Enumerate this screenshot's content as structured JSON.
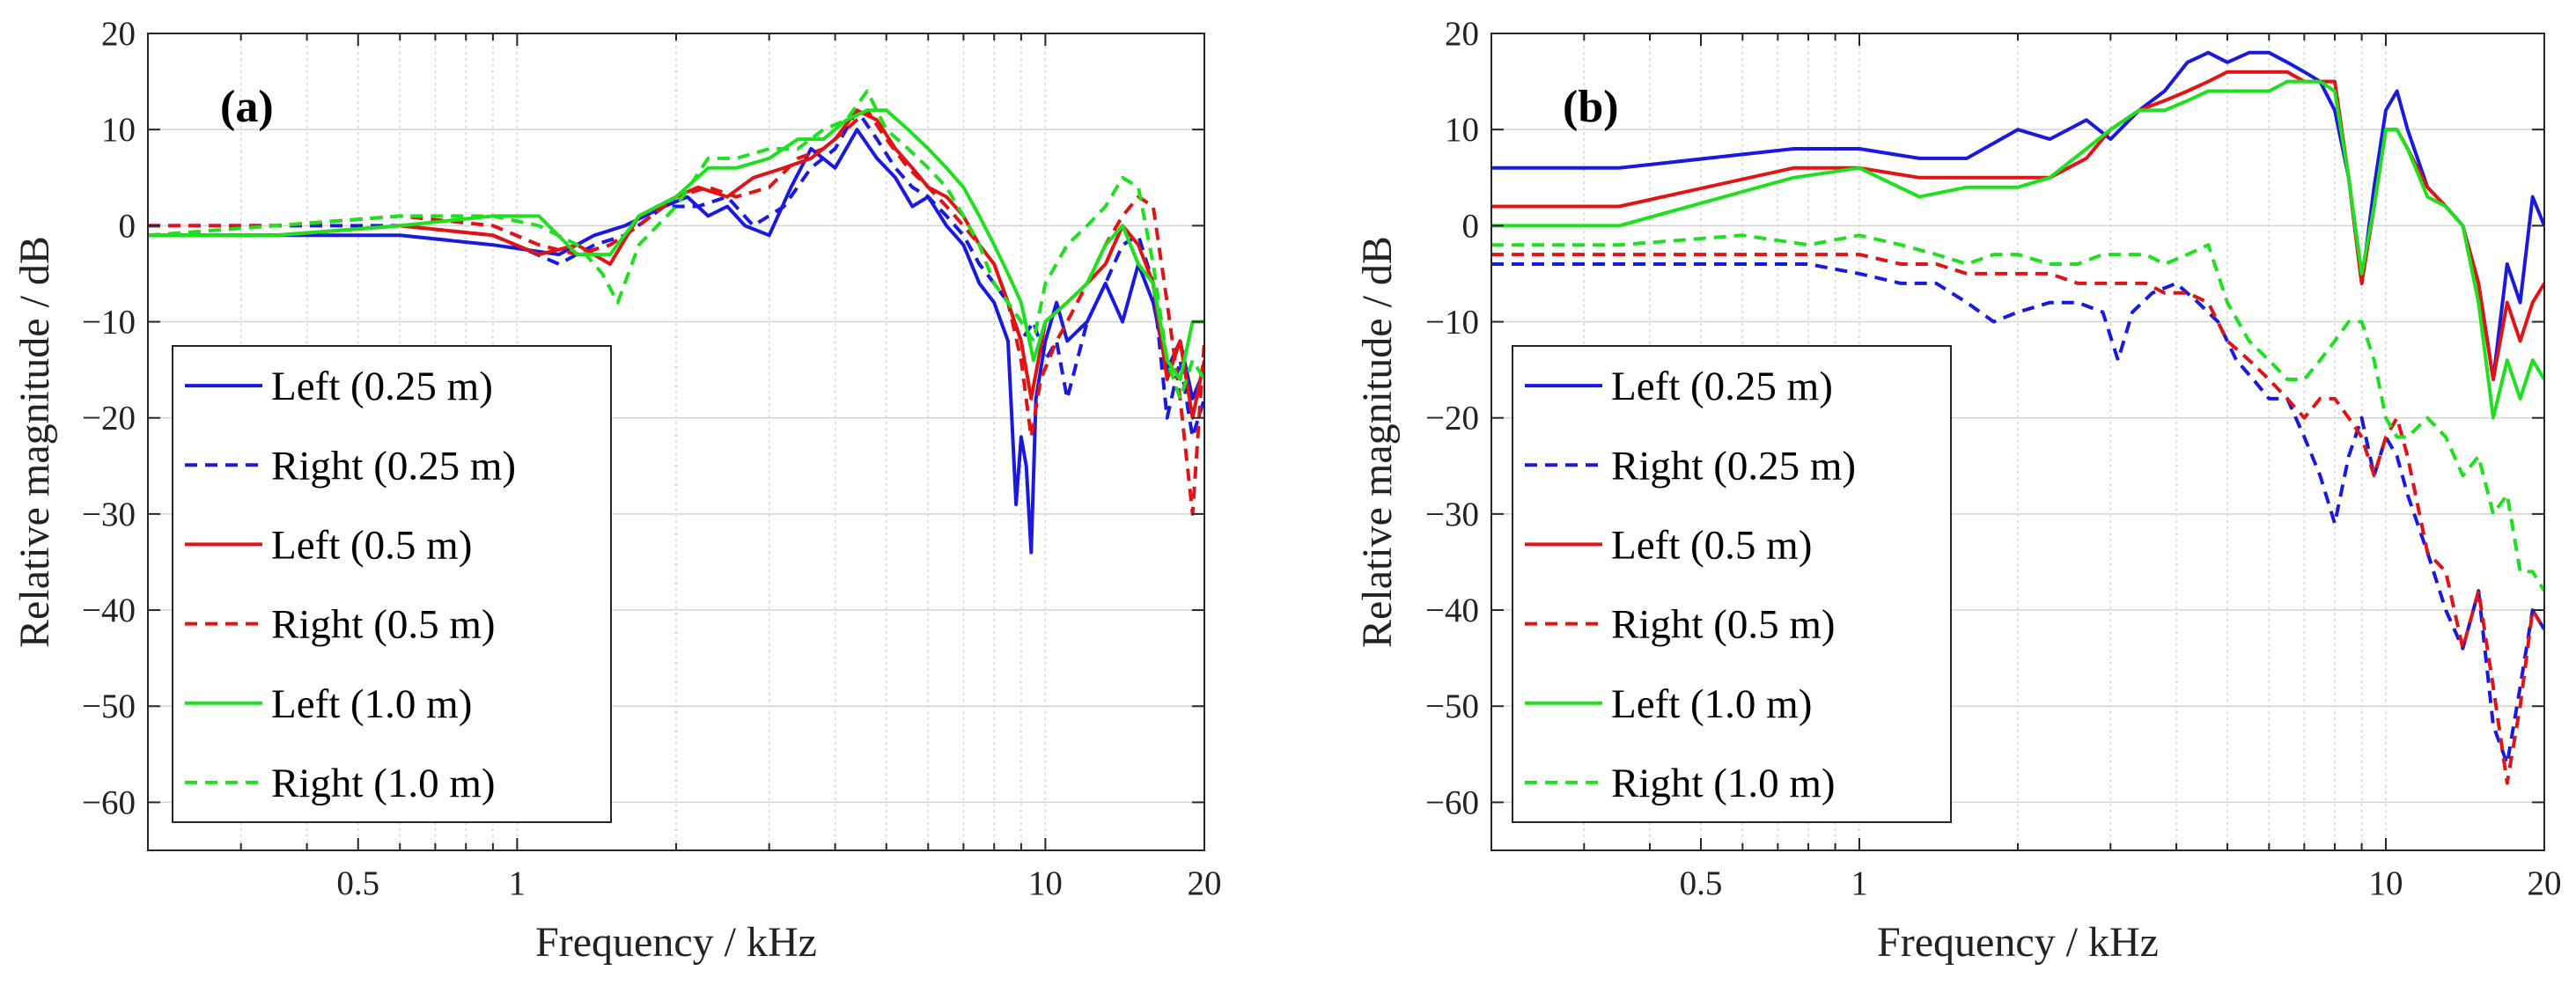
{
  "chart_data": [
    {
      "type": "line",
      "panel_label": "(a)",
      "xscale": "log",
      "xlabel": "Frequency / kHz",
      "ylabel": "Relative magnitude / dB",
      "xlim": [
        0.2,
        20
      ],
      "ylim": [
        -65,
        20
      ],
      "xticks": [
        0.5,
        1,
        10,
        20
      ],
      "xtick_labels": [
        "0.5",
        "1",
        "10",
        "20"
      ],
      "yticks": [
        20,
        10,
        0,
        -10,
        -20,
        -30,
        -40,
        -50,
        -60
      ],
      "ytick_labels": [
        "20",
        "10",
        "0",
        "−10",
        "−20",
        "−30",
        "−40",
        "−50",
        "−60"
      ],
      "grid": true,
      "legend_position": "lower-left",
      "series": [
        {
          "name": "Left (0.25 m)",
          "color": "#1a1adf",
          "dash": "solid",
          "x": [
            0.2,
            0.35,
            0.6,
            0.9,
            1.2,
            1.4,
            1.6,
            1.9,
            2.1,
            2.3,
            2.5,
            2.7,
            3,
            3.3,
            3.6,
            4,
            4.4,
            4.8,
            5.2,
            5.6,
            6,
            6.5,
            7,
            7.5,
            8,
            8.5,
            8.8,
            9,
            9.2,
            9.4,
            9.6,
            10,
            10.5,
            11,
            12,
            13,
            14,
            15,
            16,
            17,
            18,
            19,
            20
          ],
          "y": [
            -1,
            -1,
            -1,
            -2,
            -3,
            -1,
            0,
            2,
            3,
            1,
            2,
            0,
            -1,
            4,
            8,
            6,
            10,
            7,
            5,
            2,
            3,
            0,
            -2,
            -6,
            -8,
            -12,
            -29,
            -22,
            -25,
            -34,
            -18,
            -12,
            -8,
            -12,
            -10,
            -6,
            -10,
            -4,
            -8,
            -15,
            -12,
            -18,
            -15
          ]
        },
        {
          "name": "Right (0.25 m)",
          "color": "#1a1adf",
          "dash": "dashed",
          "x": [
            0.2,
            0.35,
            0.6,
            0.9,
            1.2,
            1.4,
            1.6,
            1.9,
            2.2,
            2.5,
            2.8,
            3.2,
            3.6,
            4,
            4.4,
            4.8,
            5.2,
            5.6,
            6,
            6.5,
            7,
            7.5,
            8,
            8.5,
            9,
            9.5,
            10,
            10.5,
            11,
            12,
            13,
            14,
            15,
            16,
            17,
            18,
            19,
            20
          ],
          "y": [
            0,
            0,
            0,
            -1,
            -4,
            -2,
            -1,
            2,
            2,
            3,
            0,
            2,
            6,
            8,
            12,
            9,
            6,
            4,
            3,
            1,
            -1,
            -4,
            -6,
            -8,
            -12,
            -10,
            -14,
            -12,
            -18,
            -10,
            -6,
            -2,
            -1,
            -6,
            -20,
            -14,
            -22,
            -18
          ]
        },
        {
          "name": "Left (0.5 m)",
          "color": "#e01414",
          "dash": "solid",
          "x": [
            0.2,
            0.35,
            0.6,
            0.9,
            1.1,
            1.3,
            1.5,
            1.7,
            2,
            2.2,
            2.5,
            2.8,
            3.2,
            3.6,
            4,
            4.4,
            4.8,
            5.2,
            5.6,
            6,
            6.5,
            7,
            7.5,
            8,
            8.5,
            9,
            9.4,
            9.7,
            10,
            11,
            12,
            13,
            14,
            15,
            16,
            17,
            18,
            19,
            20
          ],
          "y": [
            -1,
            -1,
            0,
            -1,
            -3,
            -2,
            -4,
            1,
            3,
            4,
            3,
            5,
            6,
            7,
            9,
            12,
            11,
            8,
            6,
            4,
            3,
            1,
            -2,
            -4,
            -8,
            -12,
            -18,
            -14,
            -10,
            -8,
            -6,
            -4,
            0,
            -2,
            -6,
            -16,
            -12,
            -20,
            -14
          ]
        },
        {
          "name": "Right (0.5 m)",
          "color": "#e01414",
          "dash": "dashed",
          "x": [
            0.2,
            0.35,
            0.6,
            0.9,
            1.1,
            1.3,
            1.5,
            1.7,
            2,
            2.3,
            2.6,
            3,
            3.4,
            3.8,
            4.2,
            4.6,
            5,
            5.5,
            6,
            6.5,
            7,
            7.5,
            8,
            8.5,
            9,
            9.4,
            9.8,
            10.5,
            11,
            12,
            13,
            14,
            15,
            16,
            17,
            18,
            19,
            20
          ],
          "y": [
            0,
            0,
            1,
            0,
            -2,
            -3,
            -2,
            0,
            3,
            4,
            3,
            4,
            7,
            8,
            10,
            12,
            9,
            6,
            4,
            2,
            0,
            -2,
            -4,
            -8,
            -14,
            -22,
            -16,
            -12,
            -10,
            -6,
            -2,
            1,
            3,
            2,
            -8,
            -18,
            -30,
            -12
          ]
        },
        {
          "name": "Left (1.0 m)",
          "color": "#1fe01f",
          "dash": "solid",
          "x": [
            0.2,
            0.35,
            0.6,
            0.9,
            1.1,
            1.3,
            1.5,
            1.7,
            2,
            2.3,
            2.6,
            3,
            3.4,
            3.8,
            4.2,
            4.6,
            5,
            5.5,
            6,
            6.5,
            7,
            7.5,
            8,
            8.5,
            9,
            9.5,
            10,
            11,
            12,
            13,
            14,
            15,
            16,
            17,
            18,
            19,
            20
          ],
          "y": [
            -1,
            -1,
            0,
            1,
            1,
            -3,
            -3,
            1,
            3,
            6,
            6,
            7,
            9,
            9,
            11,
            12,
            12,
            10,
            8,
            6,
            4,
            1,
            -2,
            -5,
            -8,
            -14,
            -10,
            -8,
            -6,
            -2,
            0,
            -4,
            -6,
            -14,
            -16,
            -10,
            -10
          ]
        },
        {
          "name": "Right (1.0 m)",
          "color": "#1fe01f",
          "dash": "dashed",
          "x": [
            0.2,
            0.35,
            0.6,
            0.9,
            1.1,
            1.3,
            1.45,
            1.55,
            1.7,
            2,
            2.3,
            2.6,
            3,
            3.4,
            3.8,
            4.2,
            4.6,
            5,
            5.5,
            6,
            6.5,
            7,
            7.5,
            8,
            8.5,
            9,
            9.5,
            10,
            11,
            12,
            13,
            14,
            15,
            16,
            17,
            18,
            19,
            20
          ],
          "y": [
            -1,
            0,
            1,
            1,
            0,
            -2,
            -5,
            -8,
            -2,
            2,
            7,
            7,
            8,
            8,
            10,
            11,
            14,
            10,
            8,
            6,
            4,
            1,
            -2,
            -6,
            -8,
            -10,
            -12,
            -6,
            -2,
            0,
            2,
            5,
            4,
            -4,
            -14,
            -18,
            -14,
            -16
          ]
        }
      ],
      "legend_entries": [
        "Left (0.25 m)",
        "Right (0.25 m)",
        "Left (0.5 m)",
        "Right (0.5 m)",
        "Left (1.0 m)",
        "Right (1.0 m)"
      ]
    },
    {
      "type": "line",
      "panel_label": "(b)",
      "xscale": "log",
      "xlabel": "Frequency / kHz",
      "ylabel": "Relative magnitude / dB",
      "xlim": [
        0.2,
        20
      ],
      "ylim": [
        -65,
        20
      ],
      "xticks": [
        0.5,
        1,
        10,
        20
      ],
      "xtick_labels": [
        "0.5",
        "1",
        "10",
        "20"
      ],
      "yticks": [
        20,
        10,
        0,
        -10,
        -20,
        -30,
        -40,
        -50,
        -60
      ],
      "ytick_labels": [
        "20",
        "10",
        "0",
        "−10",
        "−20",
        "−30",
        "−40",
        "−50",
        "−60"
      ],
      "grid": true,
      "legend_position": "lower-left",
      "series": [
        {
          "name": "Left (0.25 m)",
          "color": "#1a1adf",
          "dash": "solid",
          "x": [
            0.2,
            0.35,
            0.75,
            1,
            1.3,
            1.6,
            2,
            2.3,
            2.7,
            3,
            3.4,
            3.8,
            4.2,
            4.6,
            5,
            5.5,
            6,
            6.5,
            7,
            7.5,
            8,
            8.5,
            9,
            9.5,
            10,
            10.5,
            11,
            12,
            13,
            14,
            15,
            16,
            17,
            18,
            19,
            20
          ],
          "y": [
            6,
            6,
            8,
            8,
            7,
            7,
            10,
            9,
            11,
            9,
            12,
            14,
            17,
            18,
            17,
            18,
            18,
            17,
            16,
            15,
            12,
            5,
            -6,
            4,
            12,
            14,
            10,
            4,
            2,
            0,
            -6,
            -16,
            -4,
            -8,
            3,
            0
          ]
        },
        {
          "name": "Right (0.25 m)",
          "color": "#1a1adf",
          "dash": "dashed",
          "x": [
            0.2,
            0.35,
            0.6,
            0.8,
            1,
            1.2,
            1.4,
            1.6,
            1.8,
            2,
            2.3,
            2.6,
            2.9,
            3.1,
            3.3,
            3.6,
            4,
            4.4,
            4.8,
            5.2,
            5.6,
            6,
            6.5,
            7,
            7.5,
            8,
            8.5,
            9,
            9.5,
            10,
            10.5,
            11,
            12,
            13,
            14,
            15,
            16,
            17,
            18,
            19,
            20
          ],
          "y": [
            -4,
            -4,
            -4,
            -4,
            -5,
            -6,
            -6,
            -8,
            -10,
            -9,
            -8,
            -8,
            -9,
            -14,
            -9,
            -7,
            -6,
            -8,
            -10,
            -14,
            -16,
            -18,
            -18,
            -22,
            -26,
            -31,
            -24,
            -20,
            -26,
            -22,
            -24,
            -28,
            -34,
            -40,
            -44,
            -38,
            -52,
            -56,
            -48,
            -40,
            -42
          ]
        },
        {
          "name": "Left (0.5 m)",
          "color": "#e01414",
          "dash": "solid",
          "x": [
            0.2,
            0.35,
            0.75,
            1,
            1.3,
            1.6,
            2,
            2.3,
            2.7,
            3,
            3.4,
            3.8,
            4.2,
            4.6,
            5,
            5.5,
            6,
            6.5,
            7,
            7.5,
            8,
            8.5,
            9,
            9.5,
            10,
            10.5,
            11,
            12,
            13,
            14,
            15,
            16,
            17,
            18,
            19,
            20
          ],
          "y": [
            2,
            2,
            6,
            6,
            5,
            5,
            5,
            5,
            7,
            10,
            12,
            13,
            14,
            15,
            16,
            16,
            16,
            16,
            15,
            15,
            15,
            5,
            -6,
            2,
            10,
            10,
            8,
            4,
            2,
            0,
            -6,
            -16,
            -8,
            -12,
            -8,
            -6
          ]
        },
        {
          "name": "Right (0.5 m)",
          "color": "#e01414",
          "dash": "dashed",
          "x": [
            0.2,
            0.35,
            0.6,
            0.8,
            1,
            1.2,
            1.4,
            1.6,
            1.8,
            2,
            2.3,
            2.6,
            2.9,
            3.2,
            3.5,
            3.8,
            4.2,
            4.6,
            5,
            5.5,
            6,
            6.5,
            7,
            7.5,
            8,
            8.5,
            9,
            9.5,
            10,
            10.5,
            11,
            12,
            13,
            14,
            15,
            16,
            17,
            18,
            19,
            20
          ],
          "y": [
            -3,
            -3,
            -3,
            -3,
            -3,
            -4,
            -4,
            -5,
            -5,
            -5,
            -5,
            -6,
            -6,
            -6,
            -6,
            -7,
            -7,
            -8,
            -12,
            -14,
            -16,
            -18,
            -20,
            -18,
            -18,
            -20,
            -22,
            -26,
            -22,
            -20,
            -24,
            -34,
            -36,
            -44,
            -38,
            -48,
            -58,
            -50,
            -40,
            -42
          ]
        },
        {
          "name": "Left (1.0 m)",
          "color": "#1fe01f",
          "dash": "solid",
          "x": [
            0.2,
            0.35,
            0.75,
            1,
            1.3,
            1.6,
            2,
            2.3,
            2.7,
            3,
            3.4,
            3.8,
            4.2,
            4.6,
            5,
            5.5,
            6,
            6.5,
            7,
            7.5,
            8,
            8.5,
            9,
            9.5,
            10,
            10.5,
            11,
            12,
            13,
            14,
            15,
            16,
            17,
            18,
            19,
            20
          ],
          "y": [
            0,
            0,
            5,
            6,
            3,
            4,
            4,
            5,
            8,
            10,
            12,
            12,
            13,
            14,
            14,
            14,
            14,
            15,
            15,
            15,
            14,
            5,
            -5,
            2,
            10,
            10,
            8,
            3,
            2,
            0,
            -8,
            -20,
            -14,
            -18,
            -14,
            -16
          ]
        },
        {
          "name": "Right (1.0 m)",
          "color": "#1fe01f",
          "dash": "dashed",
          "x": [
            0.2,
            0.35,
            0.6,
            0.8,
            1,
            1.2,
            1.4,
            1.6,
            1.8,
            2,
            2.3,
            2.6,
            2.9,
            3.2,
            3.5,
            3.8,
            4.2,
            4.6,
            5,
            5.5,
            6,
            6.5,
            7,
            7.5,
            8,
            8.5,
            9,
            9.5,
            10,
            10.5,
            11,
            12,
            13,
            14,
            15,
            16,
            17,
            18,
            19,
            20
          ],
          "y": [
            -2,
            -2,
            -1,
            -2,
            -1,
            -2,
            -3,
            -4,
            -3,
            -3,
            -4,
            -4,
            -3,
            -3,
            -3,
            -4,
            -3,
            -2,
            -8,
            -12,
            -14,
            -16,
            -16,
            -14,
            -12,
            -10,
            -10,
            -14,
            -20,
            -22,
            -22,
            -20,
            -22,
            -26,
            -24,
            -30,
            -28,
            -36,
            -36,
            -38
          ]
        }
      ],
      "legend_entries": [
        "Left (0.25 m)",
        "Right (0.25 m)",
        "Left (0.5 m)",
        "Right (0.5 m)",
        "Left (1.0 m)",
        "Right (1.0 m)"
      ]
    }
  ]
}
